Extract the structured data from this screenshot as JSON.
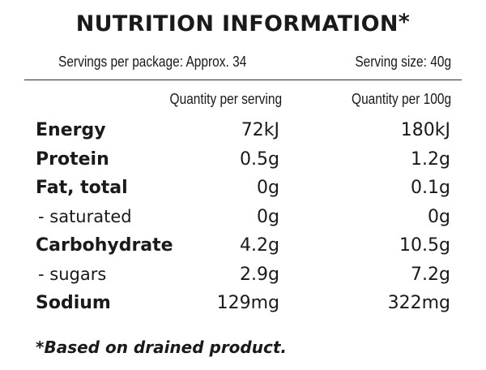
{
  "panel": {
    "title": "NUTRITION INFORMATION",
    "title_marker": "*",
    "servings_per_package": "Servings per package: Approx. 34",
    "serving_size": "Serving size: 40g",
    "columns": {
      "per_serving": "Quantity per serving",
      "per_100g": "Quantity per 100g"
    },
    "rows": [
      {
        "name": "Energy",
        "per_serving": "72kJ",
        "per_100g": "180kJ"
      },
      {
        "name": "Protein",
        "per_serving": "0.5g",
        "per_100g": "1.2g"
      },
      {
        "name": "Fat, total",
        "per_serving": "0g",
        "per_100g": "0.1g"
      },
      {
        "name": "- saturated",
        "per_serving": "0g",
        "per_100g": "0g"
      },
      {
        "name": "Carbohydrate",
        "per_serving": "4.2g",
        "per_100g": "10.5g"
      },
      {
        "name": "- sugars",
        "per_serving": "2.9g",
        "per_100g": "7.2g"
      },
      {
        "name": "Sodium",
        "per_serving": "129mg",
        "per_100g": "322mg"
      }
    ],
    "footnote": "*Based on drained product."
  }
}
